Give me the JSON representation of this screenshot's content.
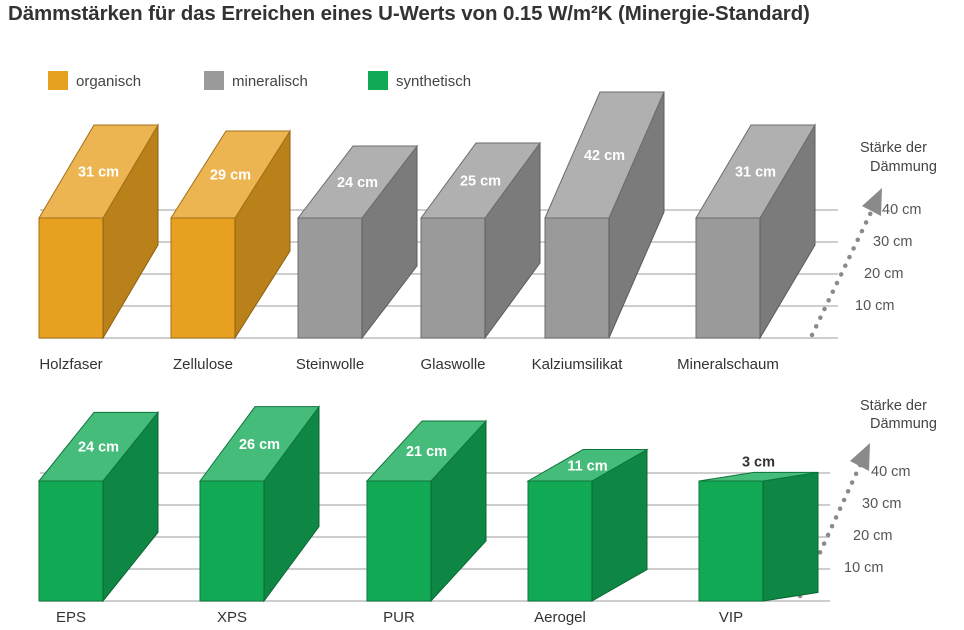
{
  "title": "Dämmstärken für das Erreichen eines U-Werts von 0.15 W/m²K (Minergie-Standard)",
  "legend": [
    {
      "name": "organisch",
      "color": "#E8A020"
    },
    {
      "name": "mineralisch",
      "color": "#9A9A9A"
    },
    {
      "name": "synthetisch",
      "color": "#12A955"
    }
  ],
  "chart_data": [
    {
      "type": "bar",
      "categories": [
        "Holzfaser",
        "Zellulose",
        "Steinwolle",
        "Glaswolle",
        "Kalziumsilikat",
        "Mineralschaum"
      ],
      "values": [
        31,
        29,
        24,
        25,
        42,
        31
      ],
      "data_labels": [
        "31 cm",
        "29 cm",
        "24 cm",
        "25 cm",
        "42 cm",
        "31 cm"
      ],
      "groups": [
        "organisch",
        "organisch",
        "mineralisch",
        "mineralisch",
        "mineralisch",
        "mineralisch"
      ],
      "axis_label": "Stärke der Dämmung",
      "ticks": [
        "10 cm",
        "20 cm",
        "30 cm",
        "40 cm"
      ],
      "tick_values": [
        10,
        20,
        30,
        40
      ]
    },
    {
      "type": "bar",
      "categories": [
        "EPS",
        "XPS",
        "PUR",
        "Aerogel",
        "VIP"
      ],
      "values": [
        24,
        26,
        21,
        11,
        3
      ],
      "data_labels": [
        "24 cm",
        "26 cm",
        "21 cm",
        "11 cm",
        "3 cm"
      ],
      "groups": [
        "synthetisch",
        "synthetisch",
        "synthetisch",
        "synthetisch",
        "synthetisch"
      ],
      "axis_label": "Stärke der Dämmung",
      "ticks": [
        "10 cm",
        "20 cm",
        "30 cm",
        "40 cm"
      ],
      "tick_values": [
        10,
        20,
        30,
        40
      ]
    }
  ]
}
